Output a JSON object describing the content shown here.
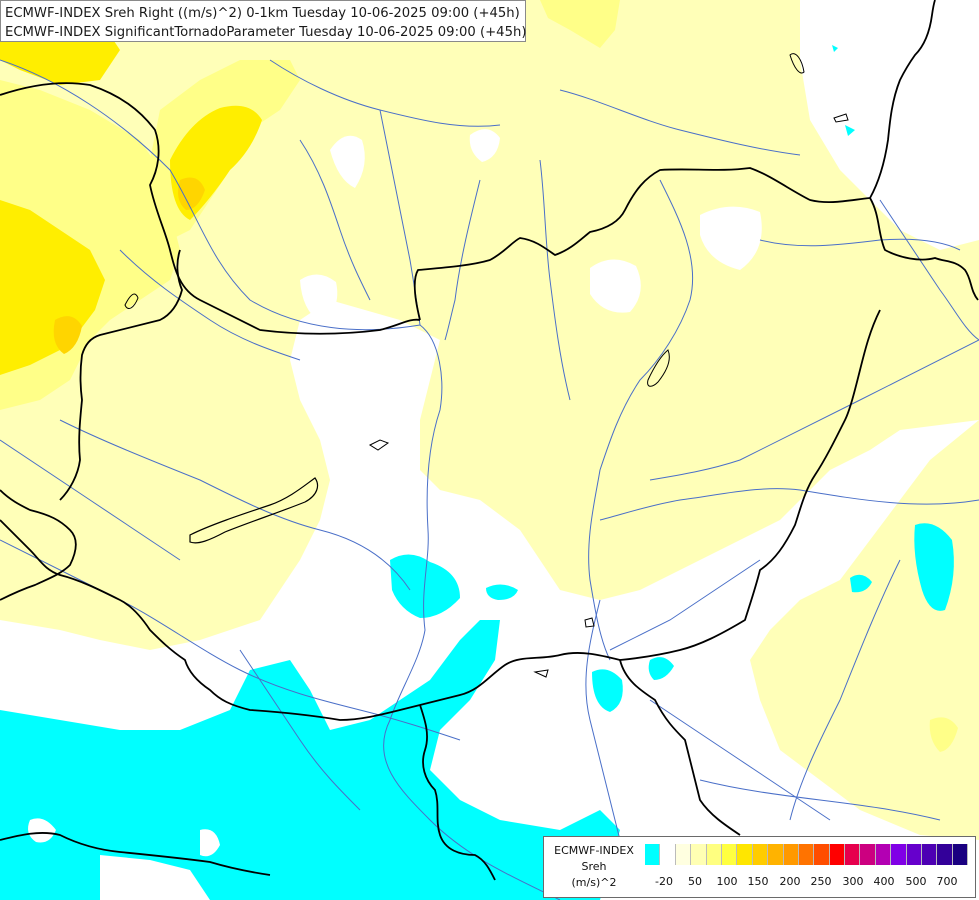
{
  "header": {
    "line1": "ECMWF-INDEX Sreh Right ((m/s)^2) 0-1km Tuesday 10-06-2025 09:00 (+45h)",
    "line2": "ECMWF-INDEX SignificantTornadoParameter Tuesday 10-06-2025 09:00 (+45h)"
  },
  "legend": {
    "title1": "ECMWF-INDEX",
    "title2": "Sreh",
    "title3": "(m/s)^2",
    "colors": [
      "#00ffff",
      "#ffffff",
      "#ffffe0",
      "#ffffb3",
      "#ffff80",
      "#ffff40",
      "#ffe600",
      "#ffcc00",
      "#ffb300",
      "#ff9900",
      "#ff7300",
      "#ff4d00",
      "#ff0000",
      "#e6004d",
      "#cc0080",
      "#b300b3",
      "#8000e6",
      "#6600cc",
      "#4d00b3",
      "#330099",
      "#1a0080"
    ],
    "ticks": [
      "-20",
      "50",
      "100",
      "150",
      "200",
      "250",
      "300",
      "400",
      "500",
      "700"
    ]
  },
  "colors": {
    "cyan": "#00ffff",
    "pale_yellow": "#ffffb8",
    "light_yellow": "#ffff88",
    "yellow": "#ffee00",
    "river": "#4a6fc8",
    "border": "#000000"
  }
}
